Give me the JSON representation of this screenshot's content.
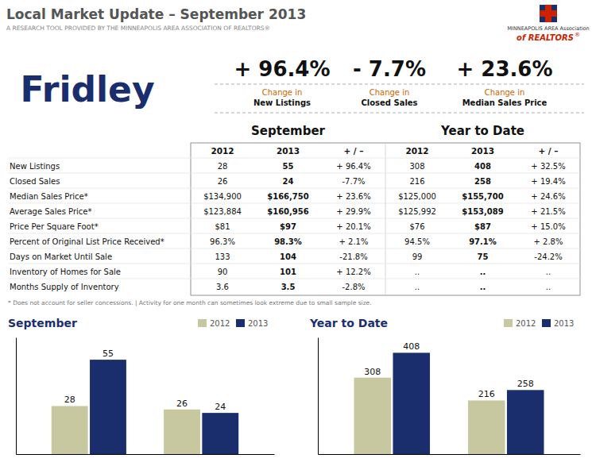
{
  "title": "Local Market Update – September 2013",
  "subtitle": "A RESEARCH TOOL PROVIDED BY THE MINNEAPOLIS AREA ASSOCIATION OF REALTORS®",
  "logo": [
    "MINNEAPOLIS AREA Association",
    "of REALTORS",
    "®"
  ],
  "city": "Fridley",
  "stats": [
    {
      "value": "+ 96.4%",
      "label1": "Change in",
      "label2": "New Listings"
    },
    {
      "value": "- 7.7%",
      "label1": "Change in",
      "label2": "Closed Sales"
    },
    {
      "value": "+ 23.6%",
      "label1": "Change in",
      "label2": "Median Sales Price"
    }
  ],
  "table": {
    "section_headers": [
      "September",
      "Year to Date"
    ],
    "headers": [
      "2012",
      "2013",
      "+ / –",
      "2012",
      "2013",
      "+ / –"
    ],
    "rows": [
      [
        "New Listings",
        "28",
        "55",
        "+ 96.4%",
        "308",
        "408",
        "+ 32.5%"
      ],
      [
        "Closed Sales",
        "26",
        "24",
        "-7.7%",
        "216",
        "258",
        "+ 19.4%"
      ],
      [
        "Median Sales Price*",
        "$134,900",
        "$166,750",
        "+ 23.6%",
        "$125,000",
        "$155,700",
        "+ 24.6%"
      ],
      [
        "Average Sales Price*",
        "$123,884",
        "$160,956",
        "+ 29.9%",
        "$125,992",
        "$153,089",
        "+ 21.5%"
      ],
      [
        "Price Per Square Foot*",
        "$81",
        "$97",
        "+ 20.1%",
        "$76",
        "$87",
        "+ 15.0%"
      ],
      [
        "Percent of Original List Price Received*",
        "96.3%",
        "98.3%",
        "+ 2.1%",
        "94.5%",
        "97.1%",
        "+ 2.8%"
      ],
      [
        "Days on Market Until Sale",
        "133",
        "104",
        "-21.8%",
        "99",
        "75",
        "-24.2%"
      ],
      [
        "Inventory of Homes for Sale",
        "90",
        "101",
        "+ 12.2%",
        "..",
        "..",
        ".."
      ],
      [
        "Months Supply of Inventory",
        "3.6",
        "3.5",
        "-2.8%",
        "..",
        "..",
        ".."
      ]
    ],
    "footnote": "* Does not account for seller concessions.  |  Activity for one month can sometimes look extreme due to small sample size."
  },
  "chart_data": [
    {
      "type": "bar",
      "title": "September",
      "categories": [
        null,
        null
      ],
      "series": [
        {
          "name": "2012",
          "color": "#c8c8a0",
          "values": [
            28,
            26
          ]
        },
        {
          "name": "2013",
          "color": "#1a2e6e",
          "values": [
            55,
            24
          ]
        }
      ],
      "ylim": [
        0,
        68
      ],
      "yticks": [],
      "tick_labels": false,
      "data_labels": true,
      "legend": "upper right"
    },
    {
      "type": "bar",
      "title": "Year to Date",
      "categories": [
        null,
        null
      ],
      "series": [
        {
          "name": "2012",
          "color": "#c8c8a0",
          "values": [
            308,
            216
          ]
        },
        {
          "name": "2013",
          "color": "#1a2e6e",
          "values": [
            408,
            258
          ]
        }
      ],
      "ylim": [
        0,
        470
      ],
      "yticks": [],
      "tick_labels": false,
      "data_labels": true,
      "legend": "upper right"
    }
  ]
}
